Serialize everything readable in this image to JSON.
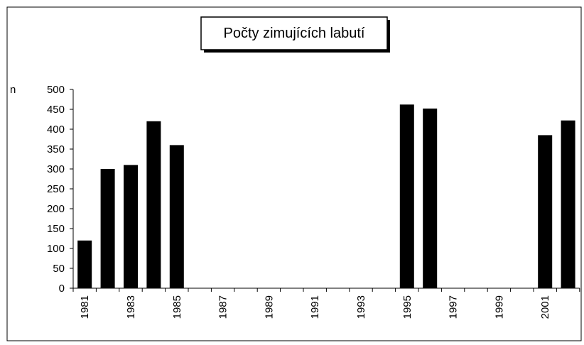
{
  "chart_data": {
    "type": "bar",
    "title": "Počty zimujících labutí",
    "y_label": "n",
    "categories": [
      "1981",
      null,
      "1983",
      null,
      "1985",
      null,
      "1987",
      null,
      "1989",
      null,
      "1991",
      null,
      "1993",
      null,
      "1995",
      null,
      "1997",
      null,
      "1999",
      null,
      "2001",
      null
    ],
    "values": [
      120,
      300,
      310,
      420,
      360,
      null,
      null,
      null,
      null,
      null,
      null,
      null,
      null,
      null,
      462,
      452,
      null,
      null,
      null,
      null,
      385,
      422
    ],
    "color": "#000000",
    "ylim": [
      0,
      500
    ],
    "yticks": [
      0,
      50,
      100,
      150,
      200,
      250,
      300,
      350,
      400,
      450,
      500
    ],
    "grid": false
  }
}
